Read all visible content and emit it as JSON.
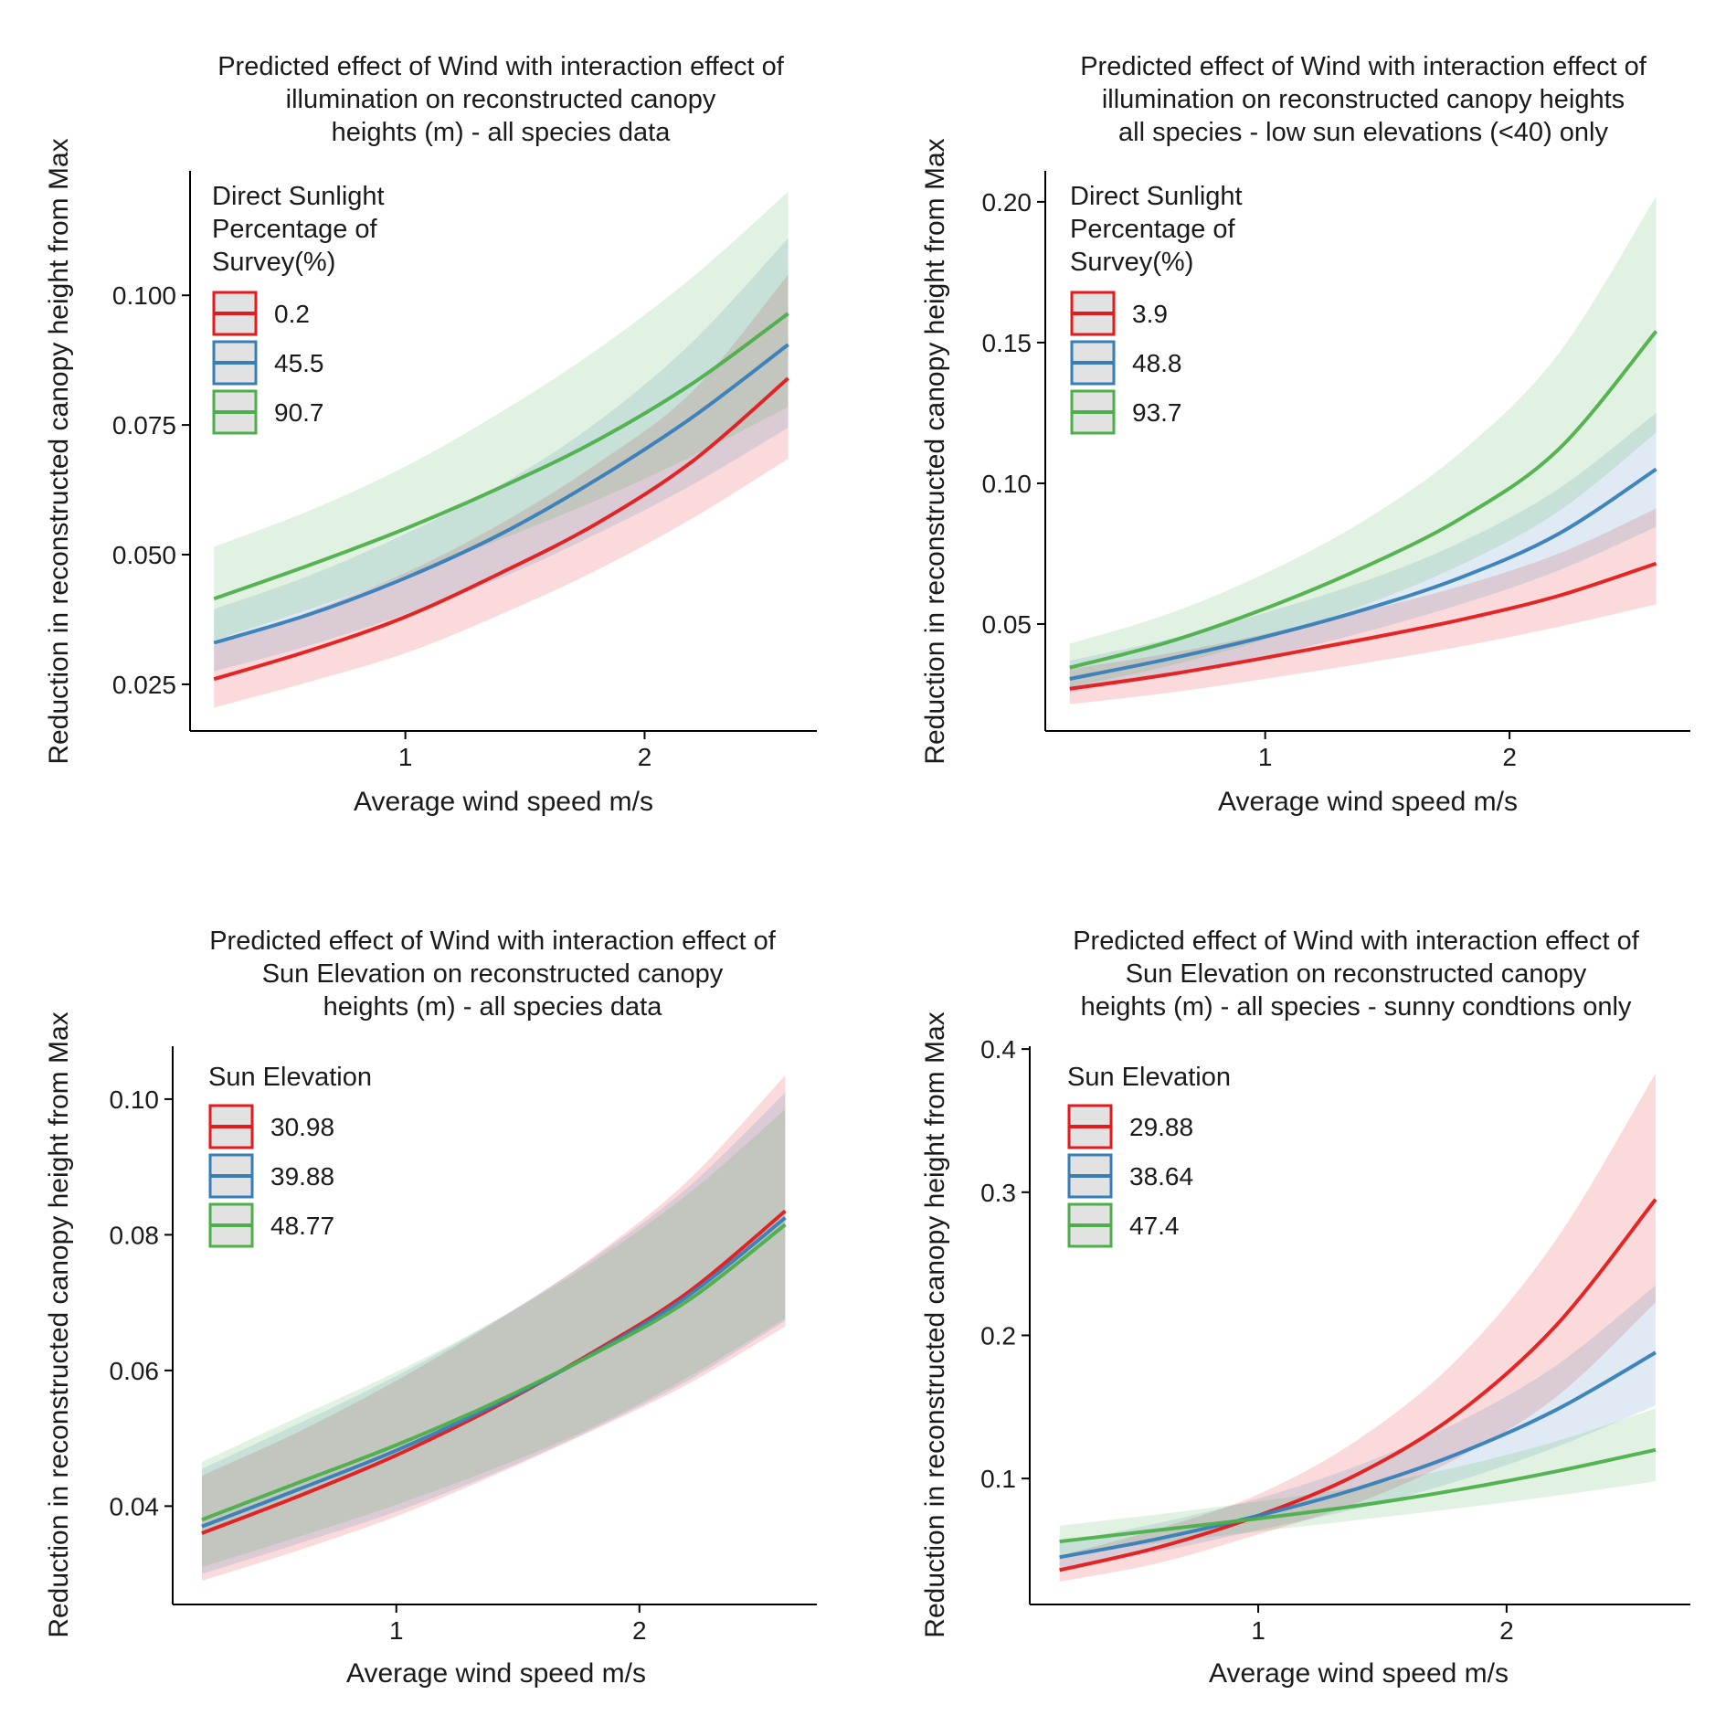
{
  "chart_data": [
    {
      "type": "line",
      "title": [
        "Predicted effect of Wind with interaction effect of",
        "illumination on reconstructed canopy",
        "heights (m) - all species data"
      ],
      "xlabel": "Average wind speed m/s",
      "ylabel": "Reduction in reconstructed canopy height from Max",
      "xlim": [
        0.1,
        2.72
      ],
      "ylim": [
        0.016,
        0.124
      ],
      "xticks": [
        1,
        2
      ],
      "xtick_labels": [
        "1",
        "2"
      ],
      "yticks": [
        0.025,
        0.05,
        0.075,
        0.1
      ],
      "ytick_labels": [
        "0.025",
        "0.050",
        "0.075",
        "0.100"
      ],
      "grid": false,
      "legend_title": [
        "Direct Sunlight",
        "Percentage of",
        " Survey(%)"
      ],
      "legend_position": "top-left",
      "x": [
        0.2,
        0.6,
        1.0,
        1.4,
        1.8,
        2.2,
        2.6
      ],
      "series": [
        {
          "name": "0.2",
          "color": "#e41a1c",
          "values": [
            0.026,
            0.0315,
            0.038,
            0.0465,
            0.056,
            0.068,
            0.084
          ],
          "lower": [
            0.0205,
            0.0255,
            0.031,
            0.0385,
            0.047,
            0.057,
            0.0685
          ],
          "upper": [
            0.0325,
            0.039,
            0.0465,
            0.056,
            0.0675,
            0.0815,
            0.104
          ]
        },
        {
          "name": "45.5",
          "color": "#377eb8",
          "values": [
            0.033,
            0.0385,
            0.0455,
            0.054,
            0.0645,
            0.0765,
            0.0905
          ],
          "lower": [
            0.0275,
            0.0325,
            0.0385,
            0.0455,
            0.054,
            0.0635,
            0.0745
          ],
          "upper": [
            0.0395,
            0.046,
            0.054,
            0.0635,
            0.0755,
            0.091,
            0.111
          ]
        },
        {
          "name": "90.7",
          "color": "#4daf4a",
          "values": [
            0.0415,
            0.048,
            0.055,
            0.063,
            0.072,
            0.083,
            0.0965
          ],
          "lower": [
            0.0335,
            0.0395,
            0.046,
            0.053,
            0.0605,
            0.069,
            0.0785
          ],
          "upper": [
            0.0515,
            0.0585,
            0.067,
            0.0775,
            0.0895,
            0.1035,
            0.12
          ]
        }
      ]
    },
    {
      "type": "line",
      "title": [
        "Predicted effect of Wind with interaction effect of",
        "illumination on reconstructed canopy heights",
        "all species - low sun elevations (<40) only"
      ],
      "xlabel": "Average wind speed m/s",
      "ylabel": "Reduction in reconstructed canopy height from Max",
      "xlim": [
        0.1,
        2.74
      ],
      "ylim": [
        0.012,
        0.211
      ],
      "xticks": [
        1,
        2
      ],
      "xtick_labels": [
        "1",
        "2"
      ],
      "yticks": [
        0.05,
        0.1,
        0.15,
        0.2
      ],
      "ytick_labels": [
        "0.05",
        "0.10",
        "0.15",
        "0.20"
      ],
      "grid": false,
      "legend_title": [
        "Direct Sunlight",
        "Percentage of",
        " Survey(%)"
      ],
      "legend_position": "top-left",
      "x": [
        0.2,
        0.6,
        1.0,
        1.4,
        1.8,
        2.2,
        2.6
      ],
      "series": [
        {
          "name": "3.9",
          "color": "#e41a1c",
          "values": [
            0.027,
            0.032,
            0.038,
            0.0445,
            0.0515,
            0.06,
            0.0715
          ],
          "lower": [
            0.0215,
            0.0255,
            0.0305,
            0.036,
            0.042,
            0.049,
            0.057
          ],
          "upper": [
            0.034,
            0.0395,
            0.0465,
            0.0545,
            0.0635,
            0.075,
            0.091
          ]
        },
        {
          "name": "48.8",
          "color": "#377eb8",
          "values": [
            0.0305,
            0.0375,
            0.0455,
            0.055,
            0.0665,
            0.082,
            0.105
          ],
          "lower": [
            0.0255,
            0.0315,
            0.0385,
            0.047,
            0.057,
            0.069,
            0.0845
          ],
          "upper": [
            0.037,
            0.0445,
            0.054,
            0.065,
            0.079,
            0.098,
            0.125
          ]
        },
        {
          "name": "93.7",
          "color": "#4daf4a",
          "values": [
            0.0345,
            0.0435,
            0.0555,
            0.07,
            0.0875,
            0.112,
            0.154
          ],
          "lower": [
            0.0275,
            0.035,
            0.0445,
            0.0565,
            0.071,
            0.09,
            0.118
          ],
          "upper": [
            0.043,
            0.0535,
            0.068,
            0.0865,
            0.111,
            0.146,
            0.202
          ]
        }
      ]
    },
    {
      "type": "line",
      "title": [
        "Predicted effect of Wind with interaction effect of",
        "Sun Elevation on reconstructed canopy",
        "heights (m) - all species data"
      ],
      "xlabel": "Average wind speed m/s",
      "ylabel": "Reduction in reconstructed canopy height from Max",
      "xlim": [
        0.08,
        2.73
      ],
      "ylim": [
        0.0255,
        0.1078
      ],
      "xticks": [
        1,
        2
      ],
      "xtick_labels": [
        "1",
        "2"
      ],
      "yticks": [
        0.04,
        0.06,
        0.08,
        0.1
      ],
      "ytick_labels": [
        "0.04",
        "0.06",
        "0.08",
        "0.10"
      ],
      "grid": false,
      "legend_title": [
        "Sun Elevation"
      ],
      "legend_position": "top-left",
      "x": [
        0.2,
        0.6,
        1.0,
        1.4,
        1.8,
        2.2,
        2.6
      ],
      "series": [
        {
          "name": "30.98",
          "color": "#e41a1c",
          "values": [
            0.036,
            0.0415,
            0.0475,
            0.0545,
            0.0625,
            0.0715,
            0.0835
          ],
          "lower": [
            0.029,
            0.0335,
            0.0385,
            0.0445,
            0.051,
            0.058,
            0.0665
          ],
          "upper": [
            0.0445,
            0.051,
            0.0585,
            0.067,
            0.0765,
            0.088,
            0.1035
          ]
        },
        {
          "name": "39.88",
          "color": "#377eb8",
          "values": [
            0.037,
            0.0425,
            0.0482,
            0.0548,
            0.0623,
            0.071,
            0.0825
          ],
          "lower": [
            0.03,
            0.0345,
            0.0392,
            0.0448,
            0.0512,
            0.0585,
            0.0673
          ],
          "upper": [
            0.0455,
            0.0522,
            0.0592,
            0.0672,
            0.0763,
            0.087,
            0.101
          ]
        },
        {
          "name": "48.77",
          "color": "#4daf4a",
          "values": [
            0.038,
            0.0435,
            0.049,
            0.0552,
            0.0622,
            0.0703,
            0.0815
          ],
          "lower": [
            0.031,
            0.0355,
            0.0402,
            0.0455,
            0.0515,
            0.059,
            0.0677
          ],
          "upper": [
            0.0465,
            0.0532,
            0.0598,
            0.0672,
            0.0758,
            0.086,
            0.0985
          ]
        }
      ]
    },
    {
      "type": "line",
      "title": [
        "Predicted effect of Wind with interaction effect of",
        "Sun Elevation on reconstructed canopy",
        "heights (m) - all species - sunny condtions only"
      ],
      "xlabel": "Average wind speed m/s",
      "ylabel": "Reduction in reconstructed canopy height from Max",
      "xlim": [
        0.08,
        2.74
      ],
      "ylim": [
        0.012,
        0.402
      ],
      "xticks": [
        1,
        2
      ],
      "xtick_labels": [
        "1",
        "2"
      ],
      "yticks": [
        0.1,
        0.2,
        0.3,
        0.4
      ],
      "ytick_labels": [
        "0.1",
        "0.2",
        "0.3",
        "0.4"
      ],
      "grid": false,
      "legend_title": [
        "Sun Elevation"
      ],
      "legend_position": "top-left",
      "x": [
        0.2,
        0.6,
        1.0,
        1.4,
        1.8,
        2.2,
        2.6
      ],
      "series": [
        {
          "name": "29.88",
          "color": "#e41a1c",
          "values": [
            0.036,
            0.052,
            0.074,
            0.103,
            0.145,
            0.207,
            0.295
          ],
          "lower": [
            0.028,
            0.041,
            0.061,
            0.083,
            0.114,
            0.157,
            0.223
          ],
          "upper": [
            0.046,
            0.065,
            0.089,
            0.127,
            0.183,
            0.267,
            0.383
          ]
        },
        {
          "name": "38.64",
          "color": "#377eb8",
          "values": [
            0.045,
            0.058,
            0.074,
            0.093,
            0.117,
            0.148,
            0.188
          ],
          "lower": [
            0.037,
            0.049,
            0.064,
            0.079,
            0.098,
            0.122,
            0.151
          ],
          "upper": [
            0.055,
            0.069,
            0.086,
            0.109,
            0.139,
            0.179,
            0.235
          ]
        },
        {
          "name": "47.4",
          "color": "#4daf4a",
          "values": [
            0.056,
            0.064,
            0.072,
            0.081,
            0.092,
            0.105,
            0.12
          ],
          "lower": [
            0.046,
            0.055,
            0.063,
            0.071,
            0.079,
            0.088,
            0.098
          ],
          "upper": [
            0.067,
            0.075,
            0.084,
            0.094,
            0.108,
            0.126,
            0.149
          ]
        }
      ]
    }
  ]
}
